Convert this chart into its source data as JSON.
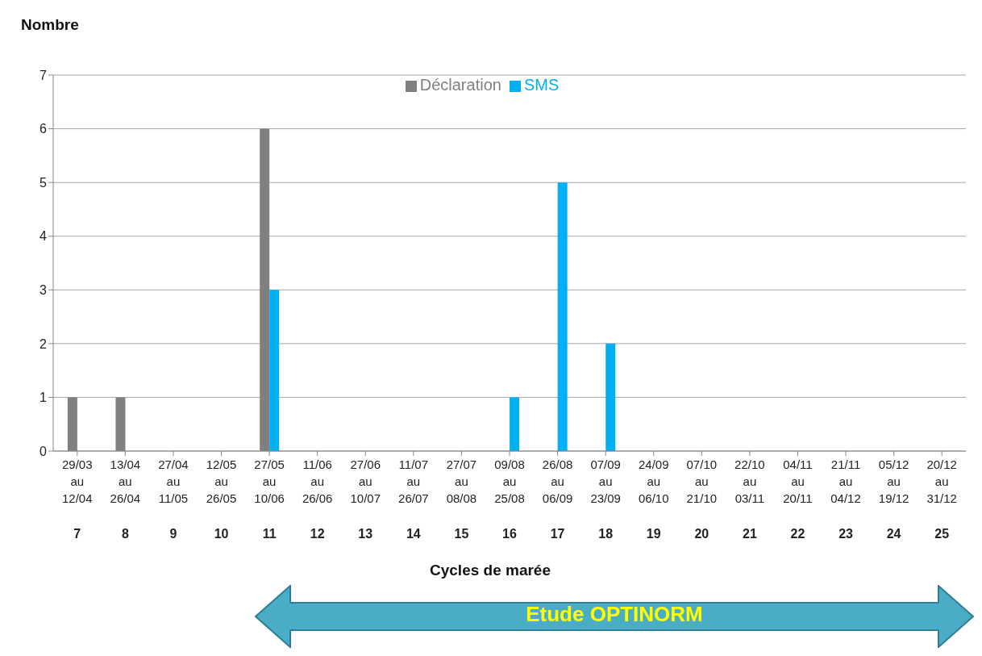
{
  "chart_data": {
    "type": "bar",
    "ylabel": "Nombre",
    "categories": [
      "29/03\nau\n12/04\n7",
      "13/04\nau\n26/04\n8",
      "27/04\nau\n11/05\n9",
      "12/05\nau\n26/05\n10",
      "27/05\nau\n10/06\n11",
      "11/06\nau\n26/06\n12",
      "27/06\nau\n10/07\n13",
      "11/07\nau\n26/07\n14",
      "27/07\nau\n08/08\n15",
      "09/08\nau\n25/08\n16",
      "26/08\nau\n06/09\n17",
      "07/09\nau\n23/09\n18",
      "24/09\nau\n06/10\n19",
      "07/10\nau\n21/10\n20",
      "22/10\nau\n03/11\n21",
      "04/11\nau\n20/11\n22",
      "21/11\nau\n04/12\n23",
      "05/12\nau\n19/12\n24",
      "20/12\nau\n31/12\n25"
    ],
    "series": [
      {
        "name": "Déclaration",
        "color": "#808080",
        "values": [
          1,
          1,
          0,
          0,
          6,
          0,
          0,
          0,
          0,
          0,
          0,
          0,
          0,
          0,
          0,
          0,
          0,
          0,
          0
        ]
      },
      {
        "name": "SMS",
        "color": "#00b0f0",
        "values": [
          0,
          0,
          0,
          0,
          3,
          0,
          0,
          0,
          0,
          1,
          5,
          2,
          0,
          0,
          0,
          0,
          0,
          0,
          0
        ]
      }
    ],
    "ylim": [
      0,
      7
    ],
    "yticks": [
      0,
      1,
      2,
      3,
      4,
      5,
      6,
      7
    ],
    "grid": "y",
    "legend": "top",
    "annotations": [
      "Cycles de marée",
      "Etude OPTINORM"
    ]
  }
}
